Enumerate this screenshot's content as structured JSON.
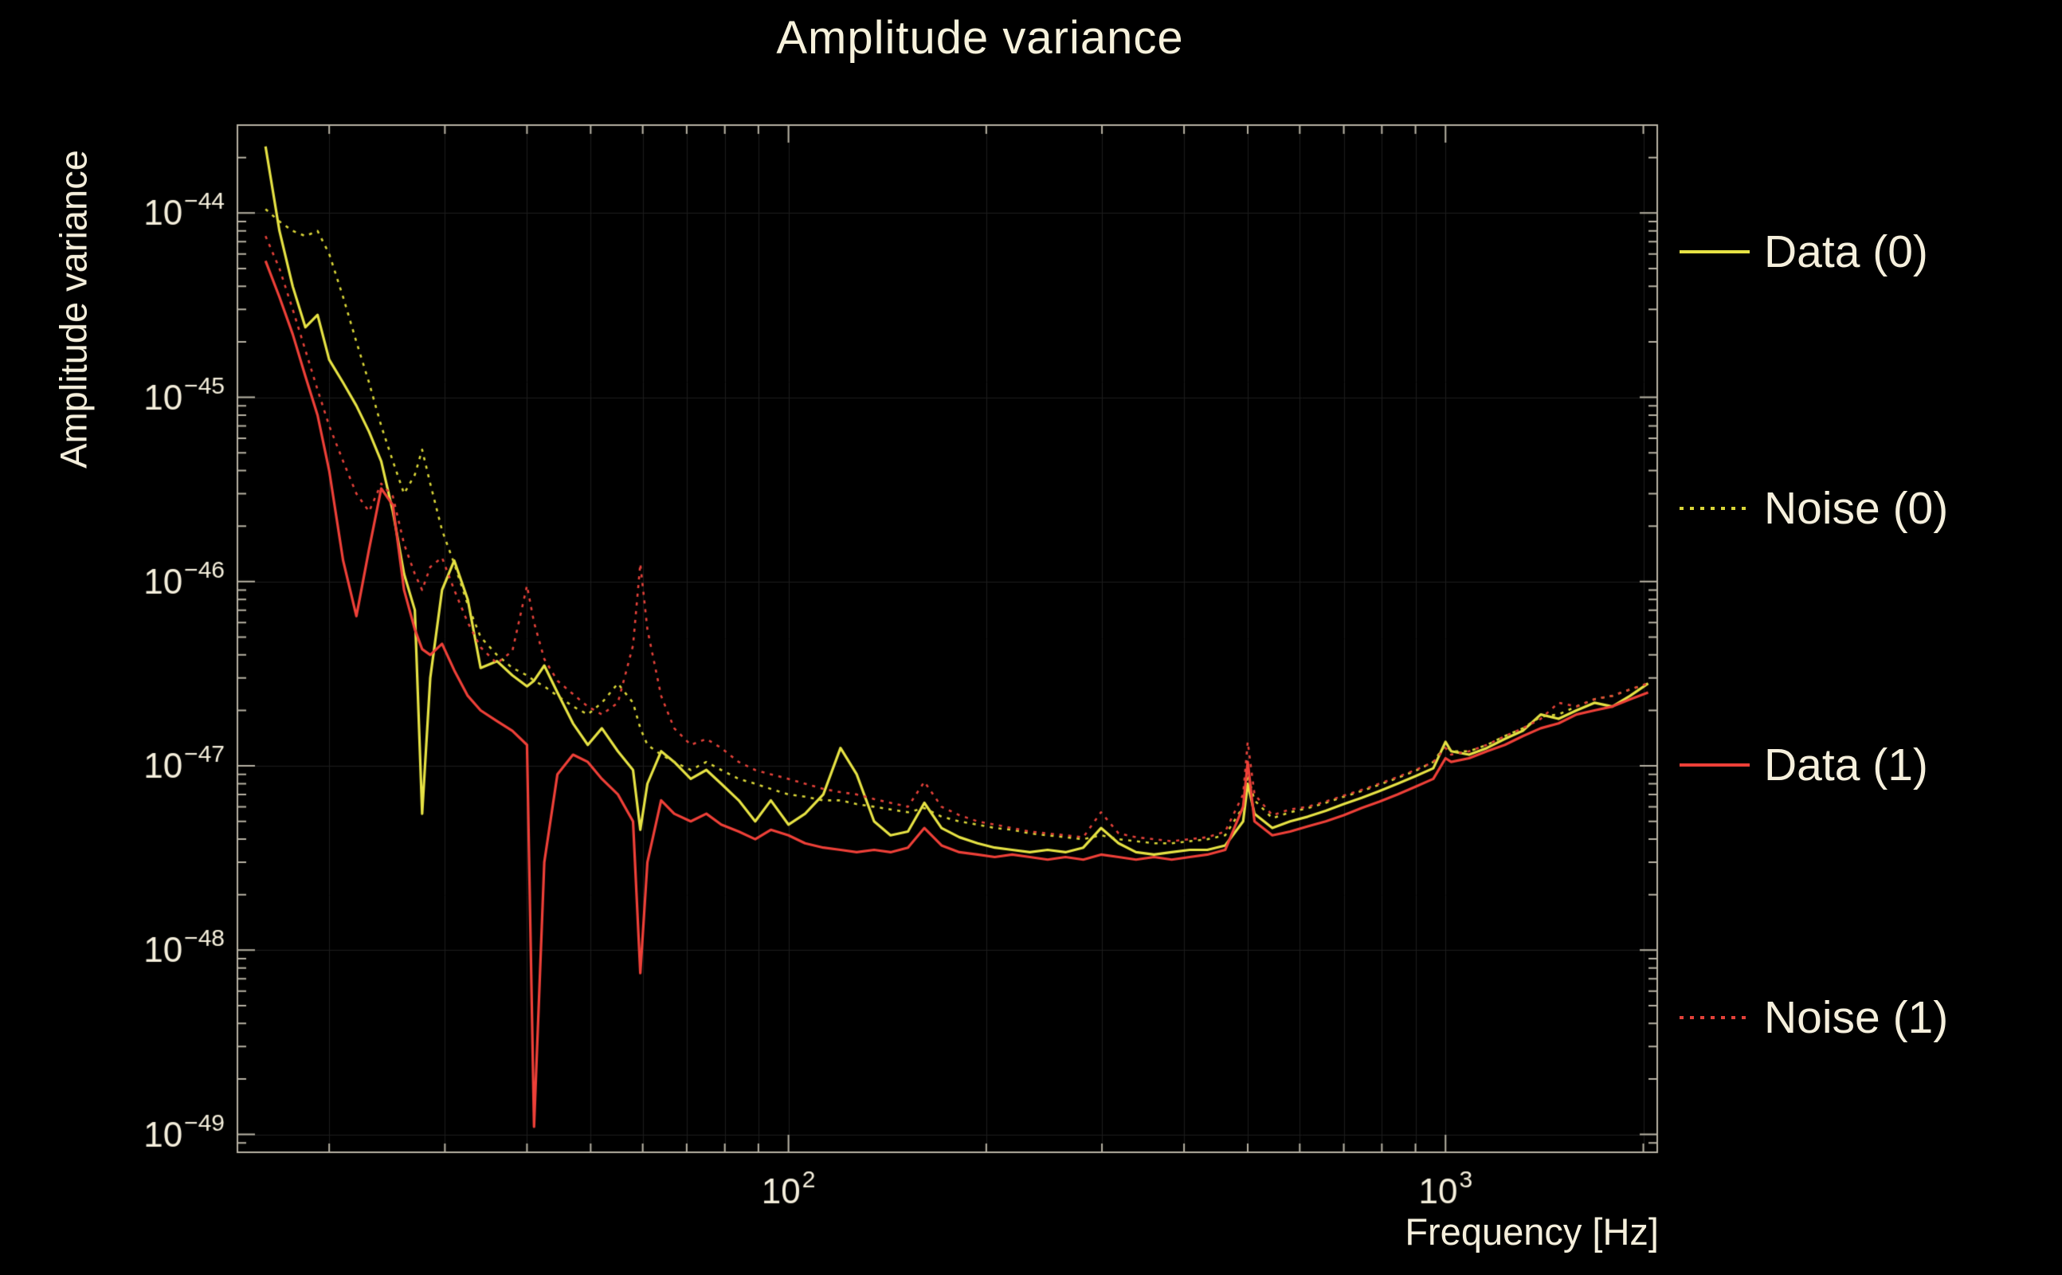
{
  "title": "Amplitude variance",
  "axes": {
    "x_label": "Frequency [Hz]",
    "y_label": "Amplitude variance"
  },
  "colors": {
    "background": "#000000",
    "text": "#f5efdc",
    "frame": "#b8b3a4",
    "grid": "#1d1d1d",
    "yellow": "#e6e244",
    "red": "#ee4038"
  },
  "legend": [
    {
      "label": "Data (0)",
      "style": "solid",
      "color": "#e6e244"
    },
    {
      "label": "Noise (0)",
      "style": "dotted",
      "color": "#d8d438"
    },
    {
      "label": "Data (1)",
      "style": "solid",
      "color": "#ee4038"
    },
    {
      "label": "Noise (1)",
      "style": "dotted",
      "color": "#e24139"
    }
  ],
  "chart_data": {
    "type": "line",
    "title": "Amplitude variance",
    "xlabel": "Frequency [Hz]",
    "ylabel": "Amplitude variance",
    "x_scale": "log",
    "y_scale": "log",
    "grid": "faint",
    "legend_position": "right",
    "xlim": [
      14.5,
      2100
    ],
    "ylim": [
      8e-50,
      3e-44
    ],
    "x_tick_exponents": [
      2,
      3
    ],
    "y_tick_exponents": [
      -44,
      -45,
      -46,
      -47,
      -48,
      -49
    ],
    "x": [
      16,
      16.8,
      17.6,
      18.4,
      19.2,
      20,
      21,
      22,
      23,
      24,
      25,
      26,
      27,
      27.7,
      28.5,
      29.7,
      31,
      32.5,
      34,
      36,
      38,
      40,
      41,
      42.5,
      44.5,
      47,
      49.5,
      52,
      55,
      58,
      59.5,
      61,
      64,
      67,
      71,
      75,
      79,
      84,
      89,
      94,
      100,
      106,
      113,
      120,
      127,
      135,
      143,
      152,
      161,
      171,
      182,
      194,
      206,
      219,
      233,
      248,
      264,
      281,
      299,
      318,
      338,
      360,
      383,
      408,
      434,
      462,
      492,
      500,
      512,
      545,
      580,
      617,
      657,
      700,
      745,
      793,
      845,
      900,
      958,
      1000,
      1020,
      1086,
      1156,
      1231,
      1311,
      1396,
      1486,
      1582,
      1685,
      1794,
      1910,
      2034
    ],
    "series": [
      {
        "name": "Data (0)",
        "color": "#e6e244",
        "line": "solid",
        "values": [
          2.3e-44,
          8e-45,
          4e-45,
          2.4e-45,
          2.8e-45,
          1.6e-45,
          1.2e-45,
          9e-46,
          6.5e-46,
          4.5e-46,
          2.4e-46,
          1.1e-46,
          7e-47,
          5.5e-48,
          3e-47,
          9e-47,
          1.3e-46,
          8e-47,
          3.4e-47,
          3.7e-47,
          3.1e-47,
          2.7e-47,
          2.9e-47,
          3.5e-47,
          2.5e-47,
          1.7e-47,
          1.3e-47,
          1.6e-47,
          1.2e-47,
          9.5e-48,
          4.5e-48,
          8e-48,
          1.2e-47,
          1.05e-47,
          8.5e-48,
          9.5e-48,
          8e-48,
          6.5e-48,
          5e-48,
          6.5e-48,
          4.8e-48,
          5.5e-48,
          7e-48,
          1.25e-47,
          9e-48,
          5e-48,
          4.2e-48,
          4.4e-48,
          6.3e-48,
          4.6e-48,
          4.1e-48,
          3.8e-48,
          3.6e-48,
          3.5e-48,
          3.4e-48,
          3.5e-48,
          3.4e-48,
          3.6e-48,
          4.6e-48,
          3.8e-48,
          3.4e-48,
          3.3e-48,
          3.4e-48,
          3.5e-48,
          3.5e-48,
          3.7e-48,
          5e-48,
          8e-48,
          5.5e-48,
          4.6e-48,
          5e-48,
          5.3e-48,
          5.7e-48,
          6.2e-48,
          6.7e-48,
          7.3e-48,
          8e-48,
          8.8e-48,
          9.7e-48,
          1.35e-47,
          1.2e-47,
          1.15e-47,
          1.25e-47,
          1.4e-47,
          1.55e-47,
          1.9e-47,
          1.8e-47,
          2e-47,
          2.2e-47,
          2.1e-47,
          2.4e-47,
          2.8e-47
        ]
      },
      {
        "name": "Noise (0)",
        "color": "#d8d438",
        "line": "dotted",
        "values": [
          1.05e-44,
          9e-45,
          8e-45,
          7.5e-45,
          8e-45,
          6e-45,
          3.5e-45,
          2e-45,
          1.2e-45,
          7e-46,
          4.5e-46,
          3e-46,
          3.8e-46,
          5.2e-46,
          3.4e-46,
          1.9e-46,
          1.25e-46,
          7.5e-47,
          5e-47,
          4e-47,
          3.4e-47,
          3.1e-47,
          2.9e-47,
          2.7e-47,
          2.4e-47,
          2.1e-47,
          1.9e-47,
          2.2e-47,
          2.8e-47,
          2.2e-47,
          1.6e-47,
          1.3e-47,
          1.15e-47,
          1.05e-47,
          9.5e-48,
          1.05e-47,
          9.5e-48,
          8.5e-48,
          8e-48,
          7.5e-48,
          7e-48,
          6.8e-48,
          6.5e-48,
          6.5e-48,
          6.2e-48,
          6e-48,
          5.8e-48,
          5.6e-48,
          5.9e-48,
          5.3e-48,
          5e-48,
          4.8e-48,
          4.6e-48,
          4.5e-48,
          4.3e-48,
          4.2e-48,
          4.1e-48,
          4e-48,
          4.2e-48,
          4e-48,
          3.9e-48,
          3.8e-48,
          3.8e-48,
          3.9e-48,
          4e-48,
          4.2e-48,
          6e-48,
          9e-48,
          6.5e-48,
          5.2e-48,
          5.6e-48,
          5.9e-48,
          6.3e-48,
          6.8e-48,
          7.3e-48,
          7.9e-48,
          8.6e-48,
          9.4e-48,
          1.05e-47,
          1.3e-47,
          1.2e-47,
          1.2e-47,
          1.3e-47,
          1.45e-47,
          1.6e-47,
          1.85e-47,
          1.9e-47,
          2.1e-47,
          2.3e-47,
          2.4e-47,
          2.6e-47,
          2.8e-47
        ]
      },
      {
        "name": "Data (1)",
        "color": "#ee4038",
        "line": "solid",
        "values": [
          5.5e-45,
          3.5e-45,
          2.2e-45,
          1.3e-45,
          8e-46,
          4e-46,
          1.3e-46,
          6.5e-47,
          1.5e-46,
          3.2e-46,
          2.6e-46,
          9e-47,
          5.5e-47,
          4.3e-47,
          4e-47,
          4.6e-47,
          3.3e-47,
          2.4e-47,
          2e-47,
          1.75e-47,
          1.55e-47,
          1.3e-47,
          1.1e-49,
          3e-48,
          9e-48,
          1.15e-47,
          1.05e-47,
          8.5e-48,
          7e-48,
          5e-48,
          7.5e-49,
          3e-48,
          6.5e-48,
          5.5e-48,
          5e-48,
          5.5e-48,
          4.8e-48,
          4.4e-48,
          4e-48,
          4.5e-48,
          4.2e-48,
          3.8e-48,
          3.6e-48,
          3.5e-48,
          3.4e-48,
          3.5e-48,
          3.4e-48,
          3.6e-48,
          4.6e-48,
          3.7e-48,
          3.4e-48,
          3.3e-48,
          3.2e-48,
          3.3e-48,
          3.2e-48,
          3.1e-48,
          3.2e-48,
          3.1e-48,
          3.3e-48,
          3.2e-48,
          3.1e-48,
          3.2e-48,
          3.1e-48,
          3.2e-48,
          3.3e-48,
          3.5e-48,
          6e-48,
          1.05e-47,
          5e-48,
          4.2e-48,
          4.4e-48,
          4.7e-48,
          5e-48,
          5.4e-48,
          5.9e-48,
          6.4e-48,
          7e-48,
          7.7e-48,
          8.5e-48,
          1.1e-47,
          1.05e-47,
          1.1e-47,
          1.2e-47,
          1.3e-47,
          1.45e-47,
          1.6e-47,
          1.7e-47,
          1.9e-47,
          2e-47,
          2.1e-47,
          2.3e-47,
          2.5e-47
        ]
      },
      {
        "name": "Noise (1)",
        "color": "#e24139",
        "line": "dotted",
        "values": [
          7.5e-45,
          5e-45,
          3e-45,
          1.8e-45,
          1.1e-45,
          7e-46,
          4.5e-46,
          3e-46,
          2.4e-46,
          3.4e-46,
          2.9e-46,
          1.6e-46,
          1.1e-46,
          9e-47,
          1.2e-46,
          1.35e-46,
          9e-47,
          6e-47,
          4.4e-47,
          3.6e-47,
          4.2e-47,
          9.5e-47,
          6e-47,
          3.8e-47,
          2.9e-47,
          2.45e-47,
          2.1e-47,
          1.9e-47,
          2.2e-47,
          4.5e-47,
          1.25e-46,
          5.5e-47,
          2.4e-47,
          1.6e-47,
          1.3e-47,
          1.4e-47,
          1.25e-47,
          1.05e-47,
          9.5e-48,
          9e-48,
          8.5e-48,
          8e-48,
          7.5e-48,
          7.2e-48,
          7e-48,
          6.6e-48,
          6.3e-48,
          6e-48,
          8.2e-48,
          6e-48,
          5.4e-48,
          5e-48,
          4.8e-48,
          4.6e-48,
          4.4e-48,
          4.3e-48,
          4.2e-48,
          4.1e-48,
          5.6e-48,
          4.3e-48,
          4.1e-48,
          4e-48,
          3.9e-48,
          4e-48,
          4.1e-48,
          4.4e-48,
          7e-48,
          1.35e-47,
          7e-48,
          5.4e-48,
          5.8e-48,
          6e-48,
          6.4e-48,
          6.9e-48,
          7.4e-48,
          8e-48,
          8.7e-48,
          9.5e-48,
          1.05e-47,
          1.25e-47,
          1.15e-47,
          1.2e-47,
          1.3e-47,
          1.45e-47,
          1.6e-47,
          1.8e-47,
          2.2e-47,
          2.1e-47,
          2.3e-47,
          2.4e-47,
          2.6e-47,
          2.8e-47
        ]
      }
    ]
  }
}
